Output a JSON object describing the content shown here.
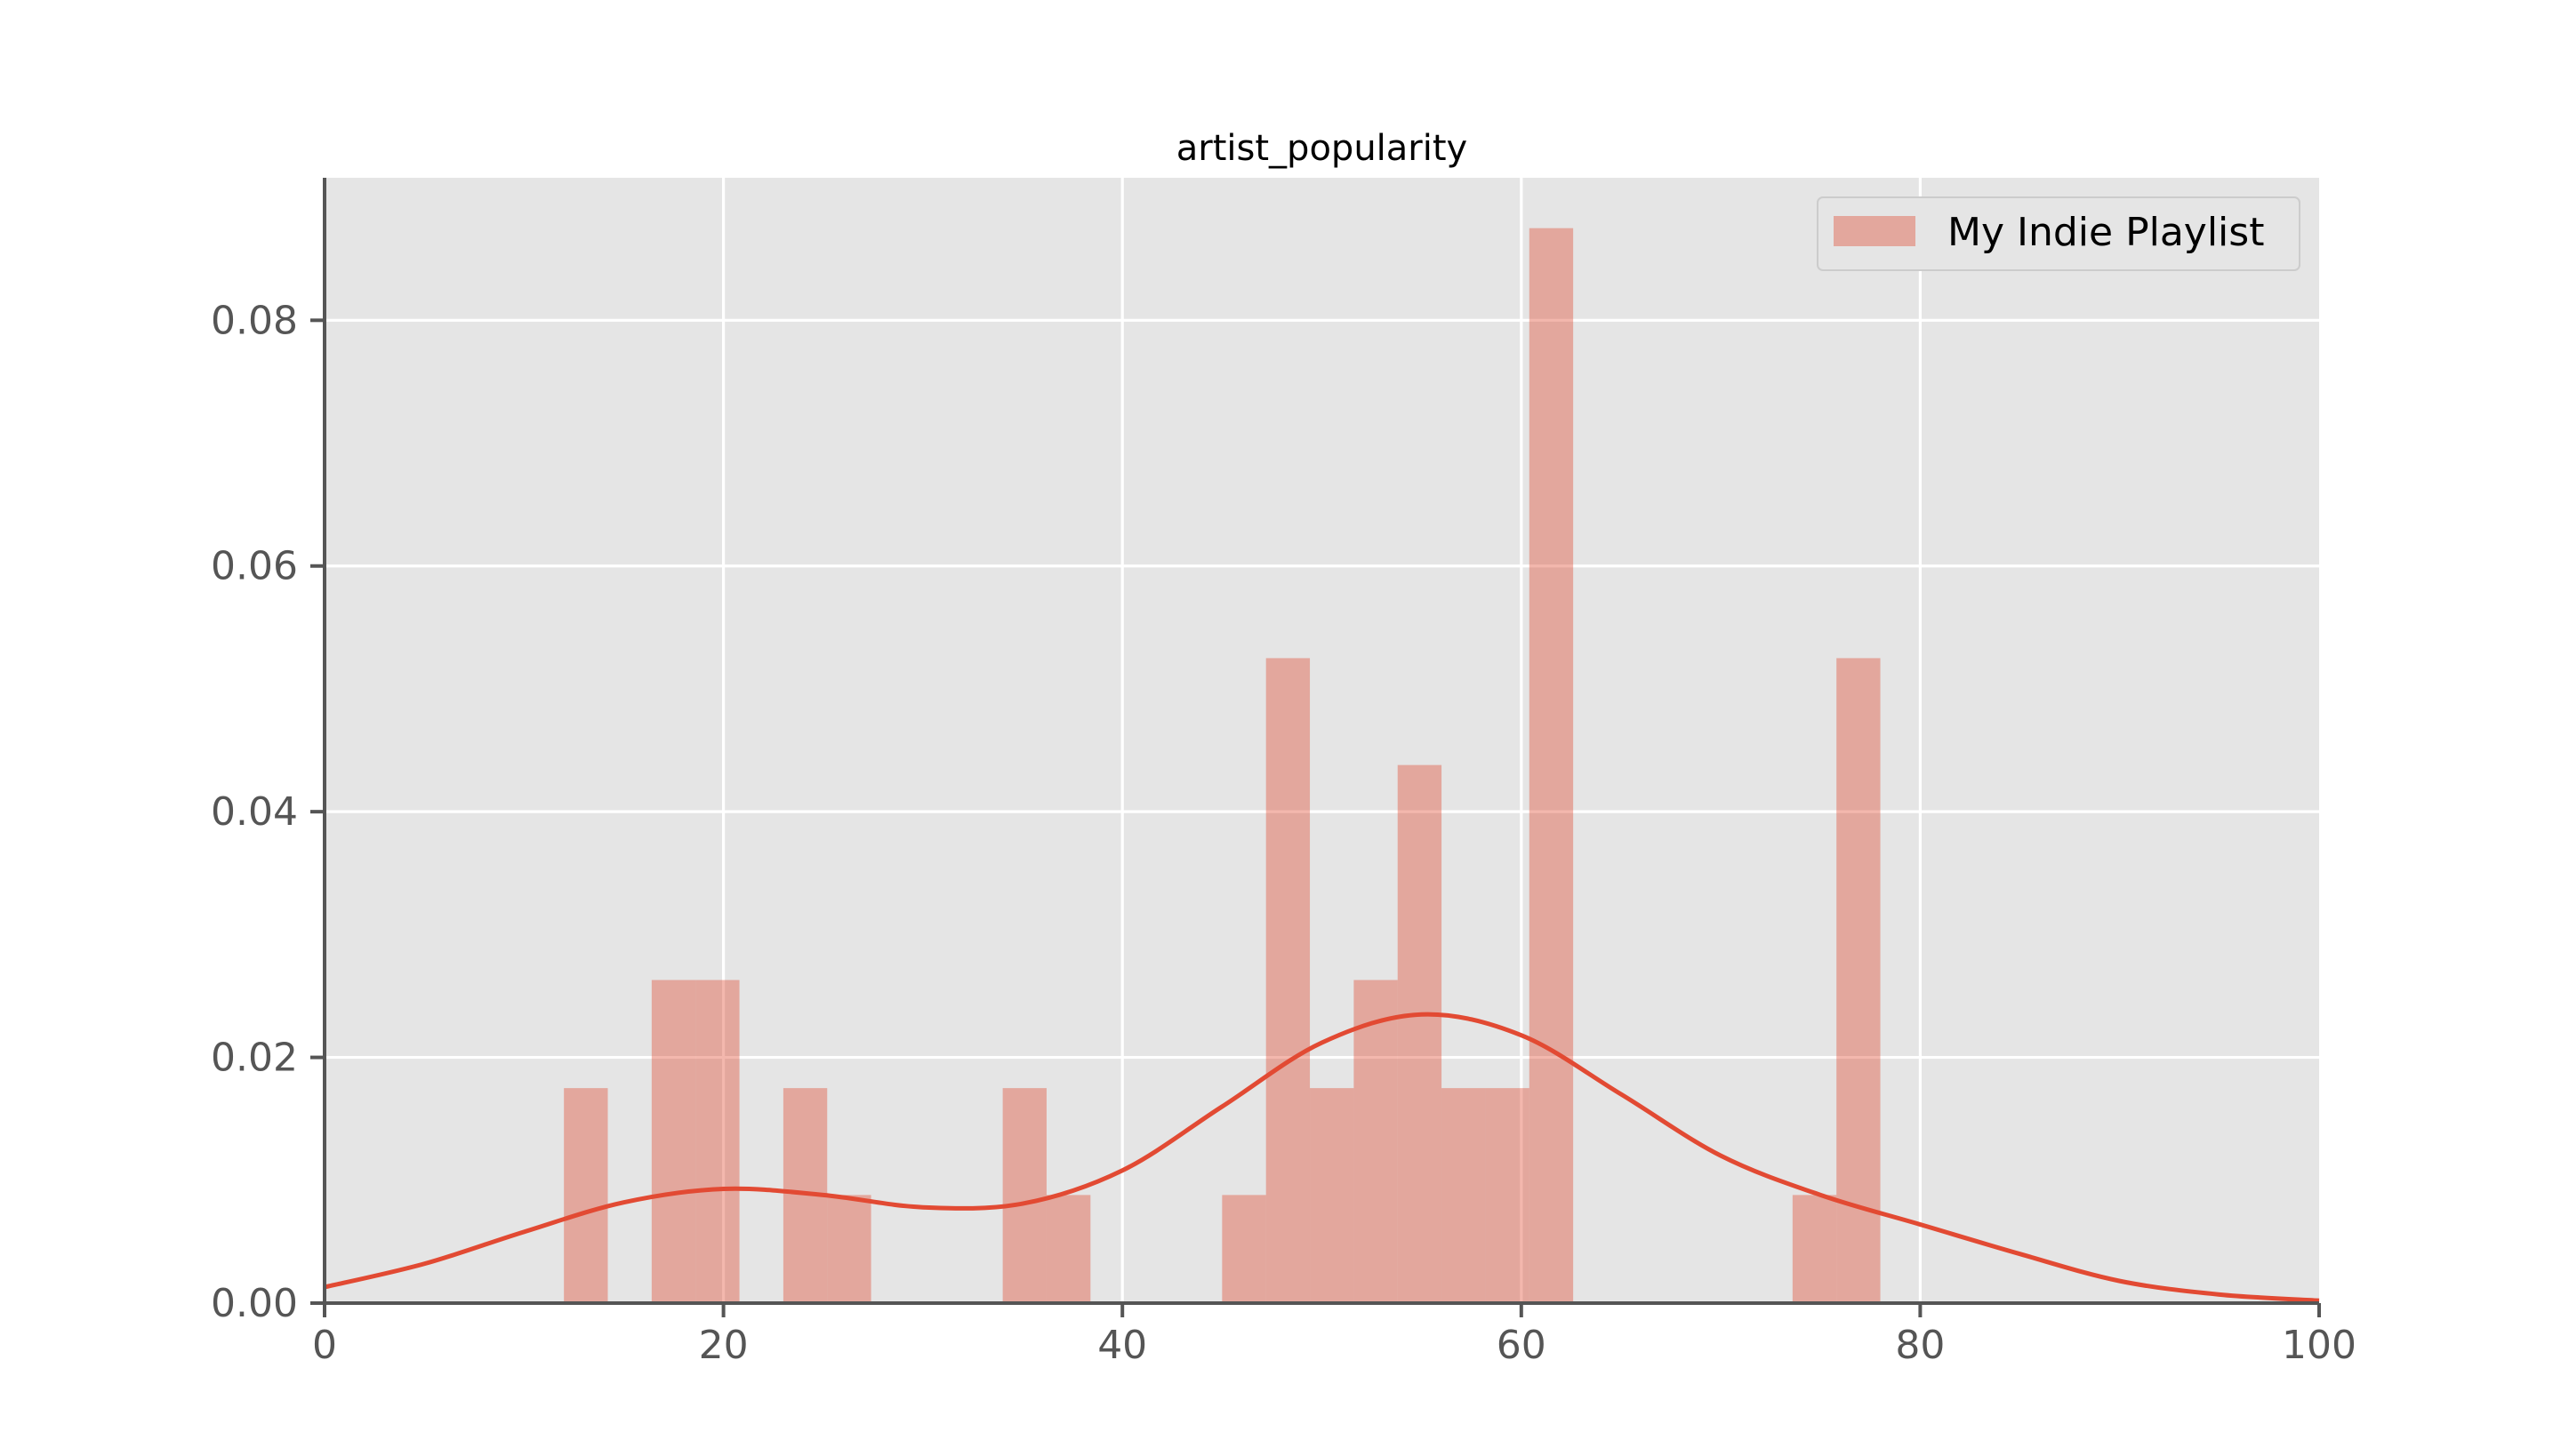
{
  "chart_data": {
    "type": "bar",
    "title": "artist_popularity",
    "xlabel": "",
    "ylabel": "",
    "xlim": [
      0,
      100
    ],
    "ylim": [
      0,
      0.0916
    ],
    "xticks": [
      0,
      20,
      40,
      60,
      80,
      100
    ],
    "xtick_labels": [
      "0",
      "20",
      "40",
      "60",
      "80",
      "100"
    ],
    "yticks": [
      0,
      0.02,
      0.04,
      0.06,
      0.08
    ],
    "ytick_labels": [
      "0.00",
      "0.02",
      "0.04",
      "0.06",
      "0.08"
    ],
    "grid": true,
    "legend_position": "top-right",
    "series": [
      {
        "name": "My Indie Playlist",
        "kind": "histogram",
        "color": "#e24a33",
        "bin_width": 2.2,
        "bins": [
          {
            "x0": 12.0,
            "x1": 14.2,
            "value": 0.0175
          },
          {
            "x0": 16.4,
            "x1": 18.6,
            "value": 0.0263
          },
          {
            "x0": 18.6,
            "x1": 20.8,
            "value": 0.0263
          },
          {
            "x0": 23.0,
            "x1": 25.2,
            "value": 0.0175
          },
          {
            "x0": 25.2,
            "x1": 27.4,
            "value": 0.0088
          },
          {
            "x0": 34.0,
            "x1": 36.2,
            "value": 0.0175
          },
          {
            "x0": 36.2,
            "x1": 38.4,
            "value": 0.0088
          },
          {
            "x0": 45.0,
            "x1": 47.2,
            "value": 0.0088
          },
          {
            "x0": 47.2,
            "x1": 49.4,
            "value": 0.0525
          },
          {
            "x0": 49.4,
            "x1": 51.6,
            "value": 0.0175
          },
          {
            "x0": 51.6,
            "x1": 53.8,
            "value": 0.0263
          },
          {
            "x0": 53.8,
            "x1": 56.0,
            "value": 0.0438
          },
          {
            "x0": 56.0,
            "x1": 58.2,
            "value": 0.0175
          },
          {
            "x0": 58.2,
            "x1": 60.4,
            "value": 0.0175
          },
          {
            "x0": 60.4,
            "x1": 62.6,
            "value": 0.0875
          },
          {
            "x0": 73.6,
            "x1": 75.8,
            "value": 0.0088
          },
          {
            "x0": 75.8,
            "x1": 78.0,
            "value": 0.0525
          }
        ],
        "kde": {
          "x": [
            0,
            5,
            10,
            15,
            20,
            25,
            30,
            35,
            40,
            45,
            50,
            55,
            60,
            65,
            70,
            75,
            80,
            85,
            90,
            95,
            100
          ],
          "y": [
            0.0013,
            0.0032,
            0.0058,
            0.0082,
            0.0093,
            0.0088,
            0.0078,
            0.0081,
            0.0108,
            0.016,
            0.0212,
            0.0235,
            0.0218,
            0.017,
            0.012,
            0.0088,
            0.0064,
            0.004,
            0.0018,
            0.0007,
            0.0002
          ]
        }
      }
    ]
  }
}
